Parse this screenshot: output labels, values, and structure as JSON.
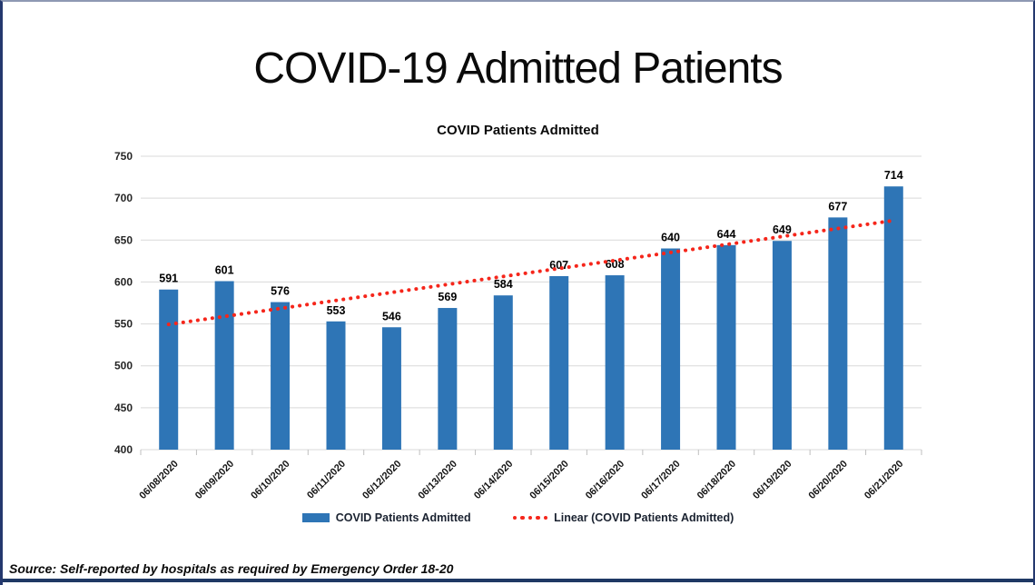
{
  "page": {
    "title": "COVID-19 Admitted Patients",
    "source_note": "Source: Self-reported by hospitals as required by Emergency Order 18-20"
  },
  "frame": {
    "border_navy": "#24386E",
    "border_top": "#8E99B3",
    "bottom_bar": "#1F3864"
  },
  "chart_data": {
    "type": "bar",
    "title": "COVID Patients Admitted",
    "categories": [
      "06/08/2020",
      "06/09/2020",
      "06/10/2020",
      "06/11/2020",
      "06/12/2020",
      "06/13/2020",
      "06/14/2020",
      "06/15/2020",
      "06/16/2020",
      "06/17/2020",
      "06/18/2020",
      "06/19/2020",
      "06/20/2020",
      "06/21/2020"
    ],
    "series": [
      {
        "name": "COVID Patients Admitted",
        "color": "#2E75B6",
        "values": [
          591,
          601,
          576,
          553,
          546,
          569,
          584,
          607,
          608,
          640,
          644,
          649,
          677,
          714
        ]
      }
    ],
    "trendline": {
      "name": "Linear (COVID Patients Admitted)",
      "type": "linear",
      "style": "dotted",
      "color": "#F5261B"
    },
    "xlabel": "",
    "ylabel": "",
    "ylim": [
      400,
      750
    ],
    "yticks": [
      400,
      450,
      500,
      550,
      600,
      650,
      700,
      750
    ],
    "grid": true,
    "data_labels": true,
    "legend_position": "bottom",
    "grid_color": "#D9D9D9",
    "axis_color": "#BFBFBF"
  }
}
